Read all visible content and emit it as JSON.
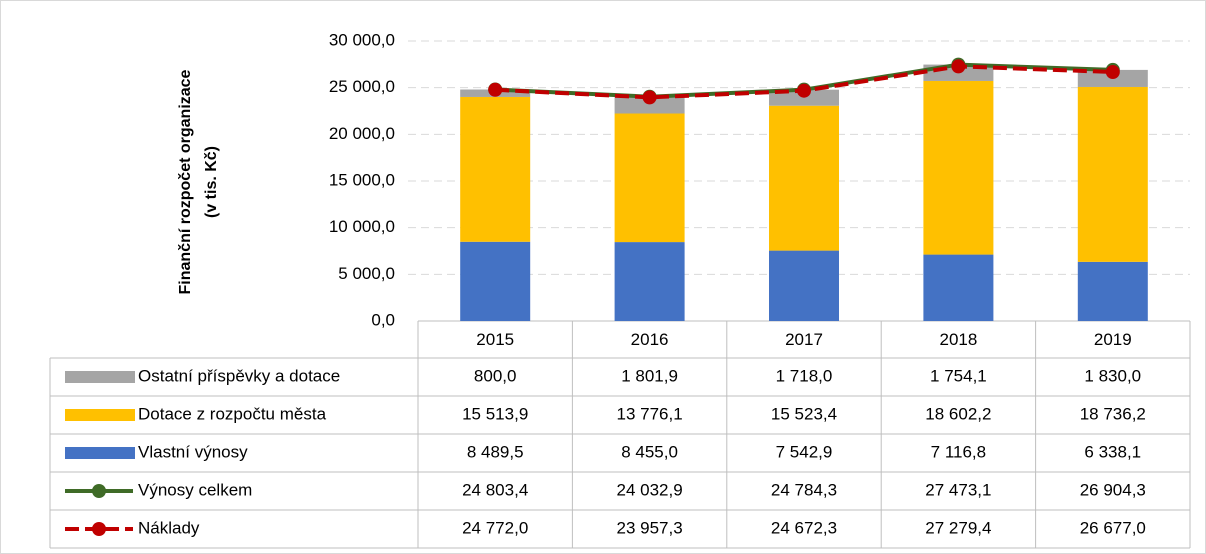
{
  "chart_data": {
    "type": "bar",
    "y_title": [
      "Finanční rozpočet organizace",
      "(v tis. Kč)"
    ],
    "categories": [
      "2015",
      "2016",
      "2017",
      "2018",
      "2019"
    ],
    "ylim": [
      0,
      30000
    ],
    "yticks": [
      {
        "value": 0,
        "label": "0,0"
      },
      {
        "value": 5000,
        "label": "5 000,0"
      },
      {
        "value": 10000,
        "label": "10 000,0"
      },
      {
        "value": 15000,
        "label": "15 000,0"
      },
      {
        "value": 20000,
        "label": "20 000,0"
      },
      {
        "value": 25000,
        "label": "25 000,0"
      },
      {
        "value": 30000,
        "label": "30 000,0"
      }
    ],
    "grid": true,
    "stacked": true,
    "series": [
      {
        "name": "Vlastní výnosy",
        "type": "bar",
        "color": "#4472c4",
        "values": [
          8489.5,
          8455.0,
          7542.9,
          7116.8,
          6338.1
        ],
        "value_labels": [
          "8 489,5",
          "8 455,0",
          "7 542,9",
          "7 116,8",
          "6 338,1"
        ]
      },
      {
        "name": "Dotace z rozpočtu města",
        "type": "bar",
        "color": "#ffc000",
        "values": [
          15513.9,
          13776.1,
          15523.4,
          18602.2,
          18736.2
        ],
        "value_labels": [
          "15 513,9",
          "13 776,1",
          "15 523,4",
          "18 602,2",
          "18 736,2"
        ]
      },
      {
        "name": "Ostatní příspěvky a dotace",
        "type": "bar",
        "color": "#a5a5a5",
        "values": [
          800.0,
          1801.9,
          1718.0,
          1754.1,
          1830.0
        ],
        "value_labels": [
          "800,0",
          "1 801,9",
          "1 718,0",
          "1 754,1",
          "1 830,0"
        ]
      },
      {
        "name": "Výnosy celkem",
        "type": "line",
        "color": "#3f6b27",
        "values": [
          24803.4,
          24032.9,
          24784.3,
          27473.1,
          26904.3
        ],
        "value_labels": [
          "24 803,4",
          "24 032,9",
          "24 784,3",
          "27 473,1",
          "26 904,3"
        ]
      },
      {
        "name": "Náklady",
        "type": "line",
        "color": "#c00000",
        "dashed": true,
        "values": [
          24772.0,
          23957.3,
          24672.3,
          27279.4,
          26677.0
        ],
        "value_labels": [
          "24 772,0",
          "23 957,3",
          "24 672,3",
          "27 279,4",
          "26 677,0"
        ]
      }
    ]
  }
}
